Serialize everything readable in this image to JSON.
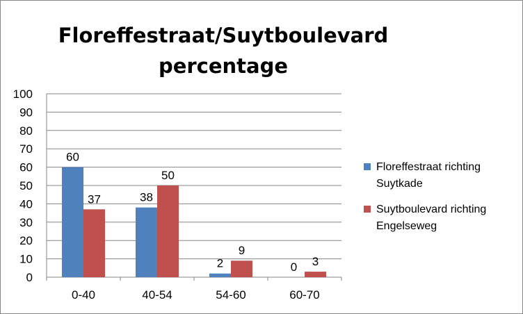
{
  "chart_data": {
    "type": "bar",
    "title_lines": [
      "Floreffestraat/Suytboulevard",
      "percentage"
    ],
    "categories": [
      "0-40",
      "40-54",
      "54-60",
      "60-70"
    ],
    "series": [
      {
        "name": "Floreffestraat richting Suytkade",
        "name_lines": [
          "Floreffestraat richting",
          "Suytkade"
        ],
        "color": "#4F81BD",
        "values": [
          60,
          38,
          2,
          0
        ]
      },
      {
        "name": "Suytboulevard richting Engelseweg",
        "name_lines": [
          "Suytboulevard richting",
          "Engelseweg"
        ],
        "color": "#C0504D",
        "values": [
          37,
          50,
          9,
          3
        ]
      }
    ],
    "ylim": [
      0,
      100
    ],
    "yticks": [
      0,
      10,
      20,
      30,
      40,
      50,
      60,
      70,
      80,
      90,
      100
    ],
    "grid": true,
    "legend_position": "right"
  }
}
